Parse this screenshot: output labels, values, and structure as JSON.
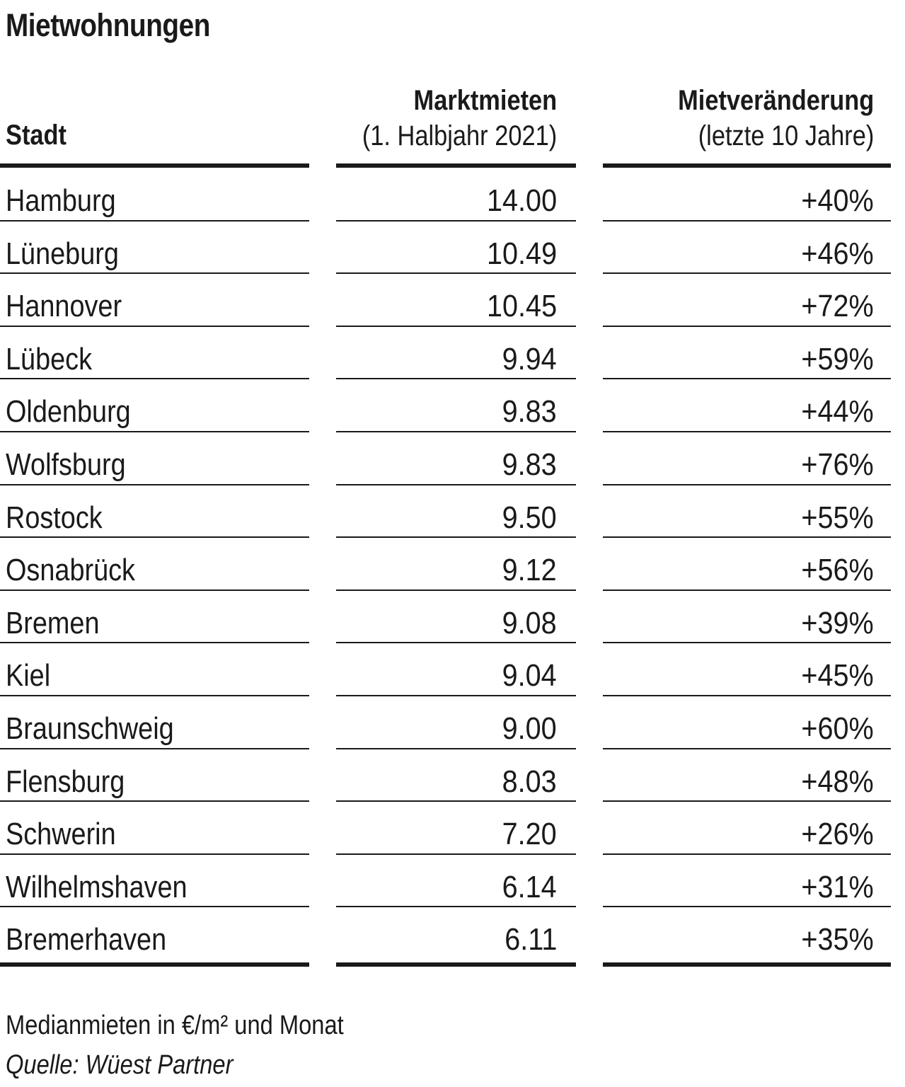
{
  "title": "Mietwohnungen",
  "headers": {
    "stadt": "Stadt",
    "rent_line1": "Marktmieten",
    "rent_line2": "(1. Halbjahr 2021)",
    "change_line1": "Mietveränderung",
    "change_line2": "(letzte 10 Jahre)"
  },
  "rows": [
    {
      "city": "Hamburg",
      "rent": "14.00",
      "change": "+40%"
    },
    {
      "city": "Lüneburg",
      "rent": "10.49",
      "change": "+46%"
    },
    {
      "city": "Hannover",
      "rent": "10.45",
      "change": "+72%"
    },
    {
      "city": "Lübeck",
      "rent": "9.94",
      "change": "+59%"
    },
    {
      "city": "Oldenburg",
      "rent": "9.83",
      "change": "+44%"
    },
    {
      "city": "Wolfsburg",
      "rent": "9.83",
      "change": "+76%"
    },
    {
      "city": "Rostock",
      "rent": "9.50",
      "change": "+55%"
    },
    {
      "city": "Osnabrück",
      "rent": "9.12",
      "change": "+56%"
    },
    {
      "city": "Bremen",
      "rent": "9.08",
      "change": "+39%"
    },
    {
      "city": "Kiel",
      "rent": "9.04",
      "change": "+45%"
    },
    {
      "city": "Braunschweig",
      "rent": "9.00",
      "change": "+60%"
    },
    {
      "city": "Flensburg",
      "rent": "8.03",
      "change": "+48%"
    },
    {
      "city": "Schwerin",
      "rent": "7.20",
      "change": "+26%"
    },
    {
      "city": "Wilhelmshaven",
      "rent": "6.14",
      "change": "+31%"
    },
    {
      "city": "Bremerhaven",
      "rent": "6.11",
      "change": "+35%"
    }
  ],
  "footnote": "Medianmieten in €/m² und Monat",
  "source": "Quelle: Wüest Partner"
}
